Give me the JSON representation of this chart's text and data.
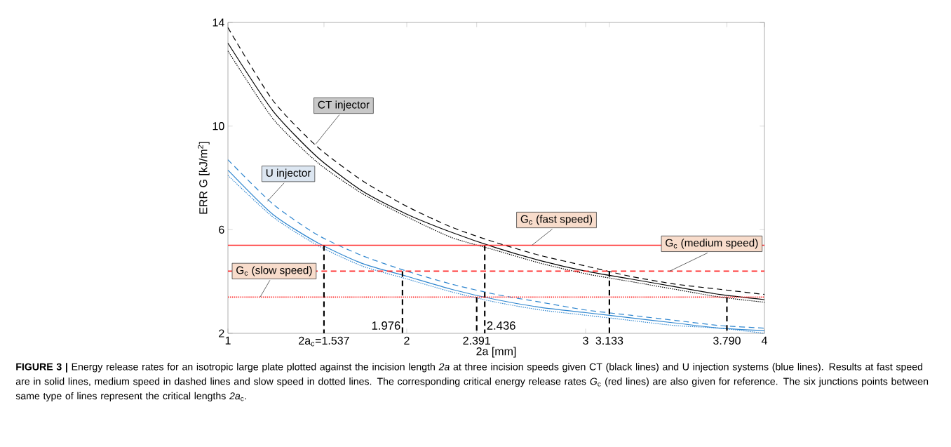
{
  "chart_data": {
    "type": "line",
    "xlabel": "2a [mm]",
    "ylabel": "ERR G [kJ/m$^{2}$]",
    "xlim": [
      1,
      4
    ],
    "ylim": [
      2,
      14
    ],
    "xticks": [
      1,
      {
        "value": 1.537,
        "label": "2a$_{c}$=1.537"
      },
      2,
      2.391,
      3,
      3.133,
      {
        "value": 3.79,
        "label": "3.790"
      },
      4
    ],
    "yticks": [
      2,
      6,
      10,
      14
    ],
    "grid": false,
    "marker": "none",
    "x": [
      1,
      1.25,
      1.5,
      1.75,
      2,
      2.25,
      2.5,
      2.75,
      3,
      3.25,
      3.5,
      3.75,
      4
    ],
    "series": [
      {
        "color": "#000000",
        "line_style": "solid",
        "values": [
          13.2,
          10.6,
          8.8,
          7.5,
          6.6,
          5.9,
          5.3,
          4.8,
          4.4,
          4.1,
          3.8,
          3.5,
          3.3
        ]
      },
      {
        "color": "#000000",
        "line_style": "dashed",
        "values": [
          13.8,
          11.0,
          9.2,
          7.9,
          6.9,
          6.1,
          5.5,
          5.0,
          4.6,
          4.2,
          3.9,
          3.7,
          3.5
        ]
      },
      {
        "color": "#000000",
        "line_style": "dotted",
        "values": [
          12.9,
          10.3,
          8.6,
          7.4,
          6.5,
          5.7,
          5.2,
          4.7,
          4.3,
          4.0,
          3.7,
          3.4,
          3.2
        ]
      },
      {
        "color": "#2f86cf",
        "line_style": "solid",
        "values": [
          8.3,
          6.6,
          5.5,
          4.7,
          4.2,
          3.7,
          3.3,
          3.0,
          2.8,
          2.6,
          2.4,
          2.2,
          2.1
        ]
      },
      {
        "color": "#2f86cf",
        "line_style": "dashed",
        "values": [
          8.7,
          7.0,
          5.8,
          5.0,
          4.4,
          3.9,
          3.5,
          3.2,
          2.9,
          2.7,
          2.5,
          2.3,
          2.2
        ]
      },
      {
        "color": "#2f86cf",
        "line_style": "dotted",
        "values": [
          8.1,
          6.5,
          5.4,
          4.6,
          4.1,
          3.6,
          3.2,
          2.9,
          2.7,
          2.5,
          2.3,
          2.2,
          2.0
        ]
      },
      {
        "type": "line",
        "color": "#000000",
        "line_style": "dashed",
        "x": [
          1.537,
          1.537
        ],
        "values": [
          5.4,
          2
        ]
      },
      {
        "type": "line",
        "color": "#000000",
        "line_style": "dashed",
        "x": [
          1.976,
          1.976
        ],
        "values": [
          4.4,
          2
        ]
      },
      {
        "type": "line",
        "color": "#000000",
        "line_style": "dashed",
        "x": [
          2.391,
          2.391
        ],
        "values": [
          3.4,
          2
        ]
      },
      {
        "type": "line",
        "color": "#000000",
        "line_style": "dashed",
        "x": [
          2.436,
          2.436
        ],
        "values": [
          5.4,
          2
        ]
      },
      {
        "type": "line",
        "color": "#000000",
        "line_style": "dashed",
        "x": [
          3.133,
          3.133
        ],
        "values": [
          4.4,
          2
        ]
      },
      {
        "type": "line",
        "color": "#000000",
        "line_style": "dashed",
        "x": [
          3.79,
          3.79
        ],
        "values": [
          3.4,
          2
        ]
      }
    ],
    "ref_lines": [
      {
        "axis": "y",
        "value": 5.4,
        "label": "G$_{c}$ (fast speed)",
        "color": "#ff2a2a",
        "line_style": "solid"
      },
      {
        "axis": "y",
        "value": 4.4,
        "label": "G$_{c}$ (medium speed)",
        "color": "#ff2a2a",
        "line_style": "dashed"
      },
      {
        "axis": "y",
        "value": 3.4,
        "label": "G$_{c}$ (slow speed)",
        "color": "#ff2a2a",
        "line_style": "dotted"
      }
    ],
    "annotations": [
      {
        "text": "CT injector",
        "x": 1.49,
        "y": 9.3
      },
      {
        "text": "U injector",
        "x": 1.22,
        "y": 7.1
      },
      {
        "text": "1.976",
        "x": 1.976,
        "y": 2.3
      },
      {
        "text": "2.436",
        "x": 2.436,
        "y": 2.3
      },
      "**FIGURE 3 |** Energy release rates for an isotropic large plate plotted against the incision length *2a* at three incision speeds given CT (black lines) and U injection systems (blue lines). Results at fast speed are in solid lines, medium speed in dashed lines and slow speed in dotted lines. The corresponding critical energy release rates *G*$_{c}$ (red lines) are also given for reference. The six junctions points between same type of lines represent the critical lengths *2a*$_{c}$."
    ]
  }
}
